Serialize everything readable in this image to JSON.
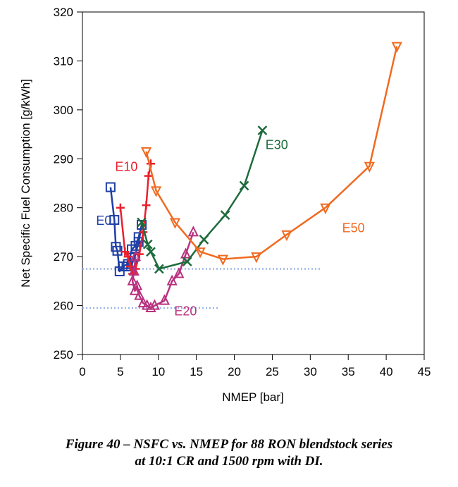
{
  "chart_data": {
    "type": "line",
    "xlabel": "NMEP [bar]",
    "ylabel": "Net Specific Fuel Consumption [g/kWh]",
    "xlim": [
      0,
      45
    ],
    "ylim": [
      250,
      320
    ],
    "xticks": [
      0,
      5,
      10,
      15,
      20,
      25,
      30,
      35,
      40,
      45
    ],
    "yticks": [
      250,
      260,
      270,
      280,
      290,
      300,
      310,
      320
    ],
    "grid": false,
    "reference_lines": [
      {
        "y": 267.5,
        "x_from": 0,
        "x_to": 31.5,
        "style": "dotted",
        "color": "#9db7e6"
      },
      {
        "y": 259.5,
        "x_from": 0,
        "x_to": 18,
        "style": "dotted",
        "color": "#9db7e6"
      }
    ],
    "series": [
      {
        "name": "E0",
        "color": "#1f3fa6",
        "marker": "square",
        "x": [
          3.7,
          4.2,
          4.4,
          4.6,
          4.9,
          5.3,
          6.0,
          6.5,
          7.0,
          7.4,
          7.8,
          7.4,
          6.9,
          6.5,
          5.8
        ],
        "y": [
          284.2,
          277.5,
          272.0,
          271.2,
          267.0,
          268.0,
          268.5,
          271.5,
          272.2,
          274.0,
          276.5,
          273.0,
          270.0,
          268.5,
          268.0
        ],
        "label_pos": [
          1.8,
          276.5
        ]
      },
      {
        "name": "E10",
        "color": "#e8202c",
        "marker": "plus",
        "x": [
          5.0,
          5.6,
          6.0,
          6.3,
          6.6,
          7.0,
          7.5,
          8.0,
          8.4,
          8.7,
          9.0
        ],
        "y": [
          280.0,
          271.0,
          270.0,
          268.0,
          266.5,
          267.5,
          270.5,
          275.0,
          280.5,
          286.5,
          289.0
        ],
        "label_pos": [
          4.3,
          287.5
        ]
      },
      {
        "name": "E20",
        "color": "#b8317e",
        "marker": "triangle-up",
        "x": [
          7.0,
          6.8,
          6.6,
          6.9,
          7.2,
          7.5,
          8.0,
          8.5,
          9.0,
          9.5,
          10.8,
          11.8,
          12.7,
          13.6,
          14.6
        ],
        "y": [
          270.0,
          267.0,
          265.0,
          263.0,
          264.0,
          262.0,
          260.5,
          260.0,
          259.5,
          260.0,
          261.0,
          265.0,
          266.5,
          270.5,
          275.0
        ],
        "label_pos": [
          12.1,
          258.0
        ]
      },
      {
        "name": "E30",
        "color": "#1e6b3c",
        "marker": "x",
        "x": [
          7.8,
          8.6,
          9.0,
          10.1,
          13.8,
          16.0,
          18.8,
          21.3,
          23.7
        ],
        "y": [
          277.0,
          272.5,
          271.0,
          267.5,
          269.0,
          273.5,
          278.5,
          284.5,
          295.8
        ],
        "label_pos": [
          24.1,
          292.0
        ]
      },
      {
        "name": "E50",
        "color": "#f06a20",
        "marker": "triangle-down",
        "x": [
          8.4,
          9.7,
          12.2,
          15.5,
          18.5,
          22.9,
          26.9,
          32.0,
          37.8,
          41.4
        ],
        "y": [
          291.5,
          283.5,
          277.0,
          271.0,
          269.5,
          270.0,
          274.5,
          280.0,
          288.5,
          313.0
        ],
        "label_pos": [
          34.2,
          275.0
        ]
      }
    ]
  },
  "caption": {
    "line1": "Figure 40 – NSFC vs. NMEP for 88 RON blendstock series",
    "line2": "at 10:1 CR and 1500 rpm with DI."
  }
}
